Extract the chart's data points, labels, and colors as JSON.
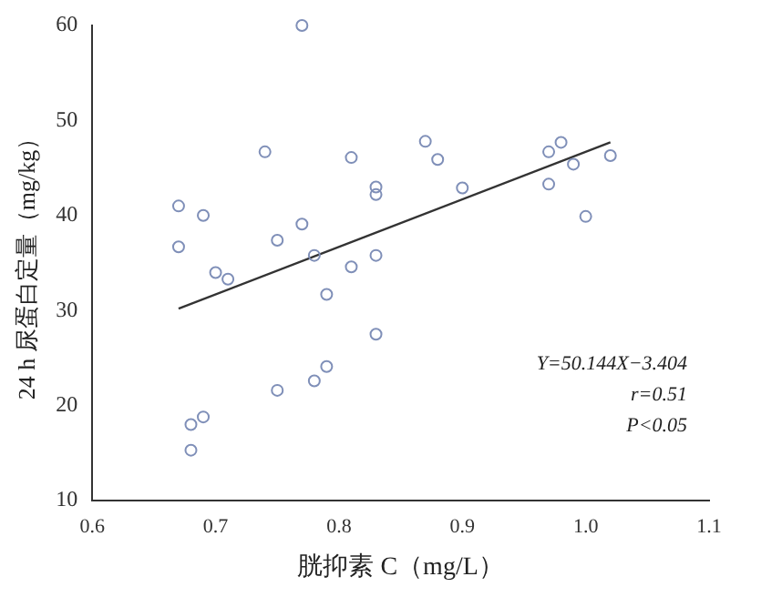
{
  "chart_data": {
    "type": "scatter",
    "xlabel": "胱抑素 C（mg/L）",
    "ylabel": "24 h 尿蛋白定量（mg/kg）",
    "xlim": [
      0.6,
      1.1
    ],
    "xticks": [
      {
        "value": 0.6,
        "label": "0.6"
      },
      {
        "value": 0.7,
        "label": "0.7"
      },
      {
        "value": 0.8,
        "label": "0.8"
      },
      {
        "value": 0.9,
        "label": "0.9"
      },
      {
        "value": 1.0,
        "label": "1.0"
      },
      {
        "value": 1.1,
        "label": "1.1"
      }
    ],
    "ylim": [
      10,
      60
    ],
    "yticks": [
      10,
      20,
      30,
      40,
      50,
      60
    ],
    "grid": false,
    "legend": false,
    "marker": "circle",
    "annotations": [
      "Y=50.144X−3.404",
      "r=0.51",
      "P<0.05"
    ],
    "series": [
      {
        "color": "#7f8fb8",
        "x": [
          0.67,
          0.67,
          0.69,
          0.7,
          0.71,
          0.74,
          0.75,
          0.75,
          0.77,
          0.78,
          0.78,
          0.77,
          0.79,
          0.79,
          0.81,
          0.81,
          0.83,
          0.83,
          0.83,
          0.83,
          0.87,
          0.88,
          0.9,
          0.97,
          0.97,
          0.98,
          0.99,
          1.0,
          1.02,
          0.68,
          0.68,
          0.69
        ],
        "values": [
          41,
          36.7,
          40,
          34,
          33.3,
          46.7,
          37.4,
          21.6,
          39.1,
          35.8,
          22.6,
          60,
          31.7,
          24.1,
          46.1,
          34.6,
          43,
          42.2,
          35.8,
          27.5,
          47.8,
          45.9,
          42.9,
          46.7,
          43.3,
          47.7,
          45.4,
          39.9,
          46.3,
          18,
          15.3,
          18.8
        ]
      },
      {
        "type": "line",
        "color": "#333333",
        "marker": "none",
        "line_style": "solid",
        "x": [
          0.67,
          1.02
        ],
        "values": [
          30.2,
          47.7
        ]
      }
    ]
  }
}
